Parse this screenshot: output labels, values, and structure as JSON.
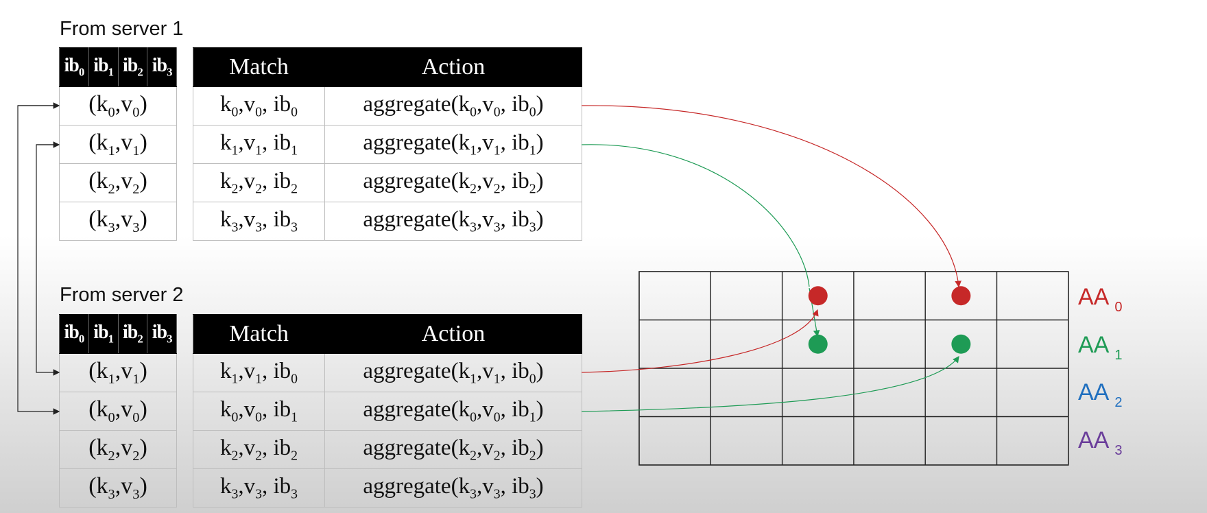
{
  "blocks": [
    {
      "title": "From server 1",
      "ib_headers": [
        "ib0",
        "ib1",
        "ib2",
        "ib3"
      ],
      "ib_rows": [
        "(k0,v0)",
        "(k1,v1)",
        "(k2,v2)",
        "(k3,v3)"
      ],
      "match_header": "Match",
      "action_header": "Action",
      "match_rows": [
        "k0,v0, ib0",
        "k1,v1, ib1",
        "k2,v2, ib2",
        "k3,v3, ib3"
      ],
      "action_rows": [
        "aggregate(k0,v0, ib0)",
        "aggregate(k1,v1, ib1)",
        "aggregate(k2,v2, ib2)",
        "aggregate(k3,v3, ib3)"
      ]
    },
    {
      "title": "From server 2",
      "ib_headers": [
        "ib0",
        "ib1",
        "ib2",
        "ib3"
      ],
      "ib_rows": [
        "(k1,v1)",
        "(k0,v0)",
        "(k2,v2)",
        "(k3,v3)"
      ],
      "match_header": "Match",
      "action_header": "Action",
      "match_rows": [
        "k1,v1, ib0",
        "k0,v0, ib1",
        "k2,v2, ib2",
        "k3,v3, ib3"
      ],
      "action_rows": [
        "aggregate(k1,v1, ib0)",
        "aggregate(k0,v0, ib1)",
        "aggregate(k2,v2, ib2)",
        "aggregate(k3,v3, ib3)"
      ]
    }
  ],
  "aa_labels": [
    {
      "text": "AA",
      "sub": "0"
    },
    {
      "text": "AA",
      "sub": "1"
    },
    {
      "text": "AA",
      "sub": "2"
    },
    {
      "text": "AA",
      "sub": "3"
    }
  ],
  "colors": {
    "row0": "#c62828",
    "row1": "#1e9b55",
    "row2": "#1f6fbf",
    "row3": "#6a3d9a"
  },
  "grid": {
    "rows": 4,
    "cols": 6
  }
}
